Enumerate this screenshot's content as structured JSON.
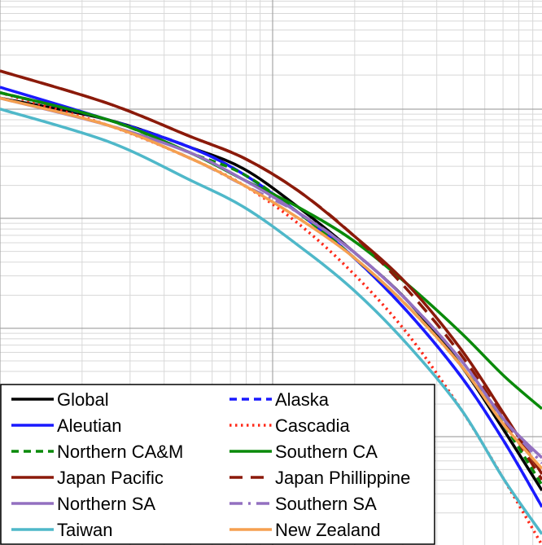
{
  "chart_data": {
    "type": "line",
    "xscale": "log",
    "yscale": "log",
    "grid": true,
    "legend_position": "bottom-left",
    "series": [
      {
        "name": "Global",
        "color": "#000000",
        "dash": "solid",
        "points": [
          [
            0.0,
            0.18
          ],
          [
            0.2,
            0.22
          ],
          [
            0.35,
            0.27
          ],
          [
            0.45,
            0.31
          ],
          [
            0.55,
            0.38
          ],
          [
            0.65,
            0.46
          ],
          [
            0.75,
            0.55
          ],
          [
            0.85,
            0.67
          ],
          [
            0.93,
            0.79
          ],
          [
            1.0,
            0.9
          ]
        ]
      },
      {
        "name": "Alaska",
        "color": "#1a1aff",
        "dash": "dash",
        "points": [
          [
            0.0,
            0.17
          ],
          [
            0.2,
            0.22
          ],
          [
            0.35,
            0.27
          ],
          [
            0.45,
            0.32
          ],
          [
            0.55,
            0.39
          ],
          [
            0.65,
            0.47
          ],
          [
            0.75,
            0.57
          ],
          [
            0.85,
            0.69
          ],
          [
            0.93,
            0.81
          ],
          [
            1.0,
            0.93
          ]
        ]
      },
      {
        "name": "Aleutian",
        "color": "#1a1aff",
        "dash": "solid",
        "points": [
          [
            0.0,
            0.16
          ],
          [
            0.2,
            0.22
          ],
          [
            0.35,
            0.27
          ],
          [
            0.45,
            0.32
          ],
          [
            0.55,
            0.39
          ],
          [
            0.65,
            0.47
          ],
          [
            0.75,
            0.57
          ],
          [
            0.85,
            0.69
          ],
          [
            0.93,
            0.81
          ],
          [
            1.0,
            0.93
          ]
        ]
      },
      {
        "name": "Cascadia",
        "color": "#ff2a1a",
        "dash": "dot",
        "points": [
          [
            0.0,
            0.17
          ],
          [
            0.2,
            0.23
          ],
          [
            0.35,
            0.29
          ],
          [
            0.45,
            0.34
          ],
          [
            0.55,
            0.41
          ],
          [
            0.65,
            0.5
          ],
          [
            0.75,
            0.61
          ],
          [
            0.85,
            0.75
          ],
          [
            0.93,
            0.88
          ],
          [
            1.0,
            1.0
          ]
        ]
      },
      {
        "name": "Northern CA&M",
        "color": "#0a8a0a",
        "dash": "dash",
        "points": [
          [
            0.0,
            0.17
          ],
          [
            0.2,
            0.22
          ],
          [
            0.35,
            0.28
          ],
          [
            0.45,
            0.32
          ],
          [
            0.55,
            0.39
          ],
          [
            0.65,
            0.47
          ],
          [
            0.75,
            0.56
          ],
          [
            0.85,
            0.67
          ],
          [
            0.93,
            0.78
          ],
          [
            1.0,
            0.89
          ]
        ]
      },
      {
        "name": "Southern CA",
        "color": "#0a8a0a",
        "dash": "solid",
        "points": [
          [
            0.0,
            0.17
          ],
          [
            0.2,
            0.22
          ],
          [
            0.35,
            0.28
          ],
          [
            0.45,
            0.33
          ],
          [
            0.55,
            0.38
          ],
          [
            0.65,
            0.44
          ],
          [
            0.75,
            0.52
          ],
          [
            0.85,
            0.61
          ],
          [
            0.93,
            0.69
          ],
          [
            1.0,
            0.75
          ]
        ]
      },
      {
        "name": "Japan Pacific",
        "color": "#8b1a0a",
        "dash": "solid",
        "points": [
          [
            0.0,
            0.13
          ],
          [
            0.2,
            0.19
          ],
          [
            0.35,
            0.25
          ],
          [
            0.45,
            0.29
          ],
          [
            0.55,
            0.35
          ],
          [
            0.65,
            0.43
          ],
          [
            0.75,
            0.52
          ],
          [
            0.85,
            0.64
          ],
          [
            0.93,
            0.76
          ],
          [
            1.0,
            0.87
          ]
        ]
      },
      {
        "name": "Japan Phillippine",
        "color": "#8b1a0a",
        "dash": "longdash",
        "points": [
          [
            0.0,
            0.13
          ],
          [
            0.2,
            0.19
          ],
          [
            0.35,
            0.25
          ],
          [
            0.45,
            0.29
          ],
          [
            0.55,
            0.35
          ],
          [
            0.65,
            0.43
          ],
          [
            0.75,
            0.53
          ],
          [
            0.85,
            0.65
          ],
          [
            0.93,
            0.77
          ],
          [
            1.0,
            0.88
          ]
        ]
      },
      {
        "name": "Northern SA",
        "color": "#9370c0",
        "dash": "solid",
        "points": [
          [
            0.0,
            0.18
          ],
          [
            0.2,
            0.23
          ],
          [
            0.35,
            0.28
          ],
          [
            0.45,
            0.33
          ],
          [
            0.55,
            0.39
          ],
          [
            0.65,
            0.46
          ],
          [
            0.75,
            0.55
          ],
          [
            0.85,
            0.66
          ],
          [
            0.93,
            0.77
          ],
          [
            1.0,
            0.84
          ]
        ]
      },
      {
        "name": "Southern SA",
        "color": "#9370c0",
        "dash": "dashdot",
        "points": [
          [
            0.0,
            0.18
          ],
          [
            0.2,
            0.23
          ],
          [
            0.35,
            0.29
          ],
          [
            0.45,
            0.34
          ],
          [
            0.55,
            0.39
          ],
          [
            0.65,
            0.46
          ],
          [
            0.75,
            0.55
          ],
          [
            0.85,
            0.66
          ],
          [
            0.93,
            0.77
          ],
          [
            1.0,
            0.85
          ]
        ]
      },
      {
        "name": "Taiwan",
        "color": "#4fb8c9",
        "dash": "solid",
        "points": [
          [
            0.0,
            0.2
          ],
          [
            0.2,
            0.26
          ],
          [
            0.35,
            0.33
          ],
          [
            0.45,
            0.38
          ],
          [
            0.55,
            0.45
          ],
          [
            0.65,
            0.53
          ],
          [
            0.75,
            0.63
          ],
          [
            0.85,
            0.75
          ],
          [
            0.93,
            0.88
          ],
          [
            1.0,
            0.98
          ]
        ]
      },
      {
        "name": "New Zealand",
        "color": "#f5a050",
        "dash": "solid",
        "points": [
          [
            0.0,
            0.18
          ],
          [
            0.2,
            0.23
          ],
          [
            0.35,
            0.29
          ],
          [
            0.45,
            0.34
          ],
          [
            0.55,
            0.4
          ],
          [
            0.65,
            0.47
          ],
          [
            0.75,
            0.56
          ],
          [
            0.85,
            0.67
          ],
          [
            0.93,
            0.78
          ],
          [
            1.0,
            0.86
          ]
        ]
      }
    ],
    "legend_order": [
      "Global",
      "Alaska",
      "Aleutian",
      "Cascadia",
      "Northern CA&M",
      "Southern CA",
      "Japan Pacific",
      "Japan Phillippine",
      "Northern SA",
      "Southern SA",
      "Taiwan",
      "New Zealand"
    ]
  }
}
